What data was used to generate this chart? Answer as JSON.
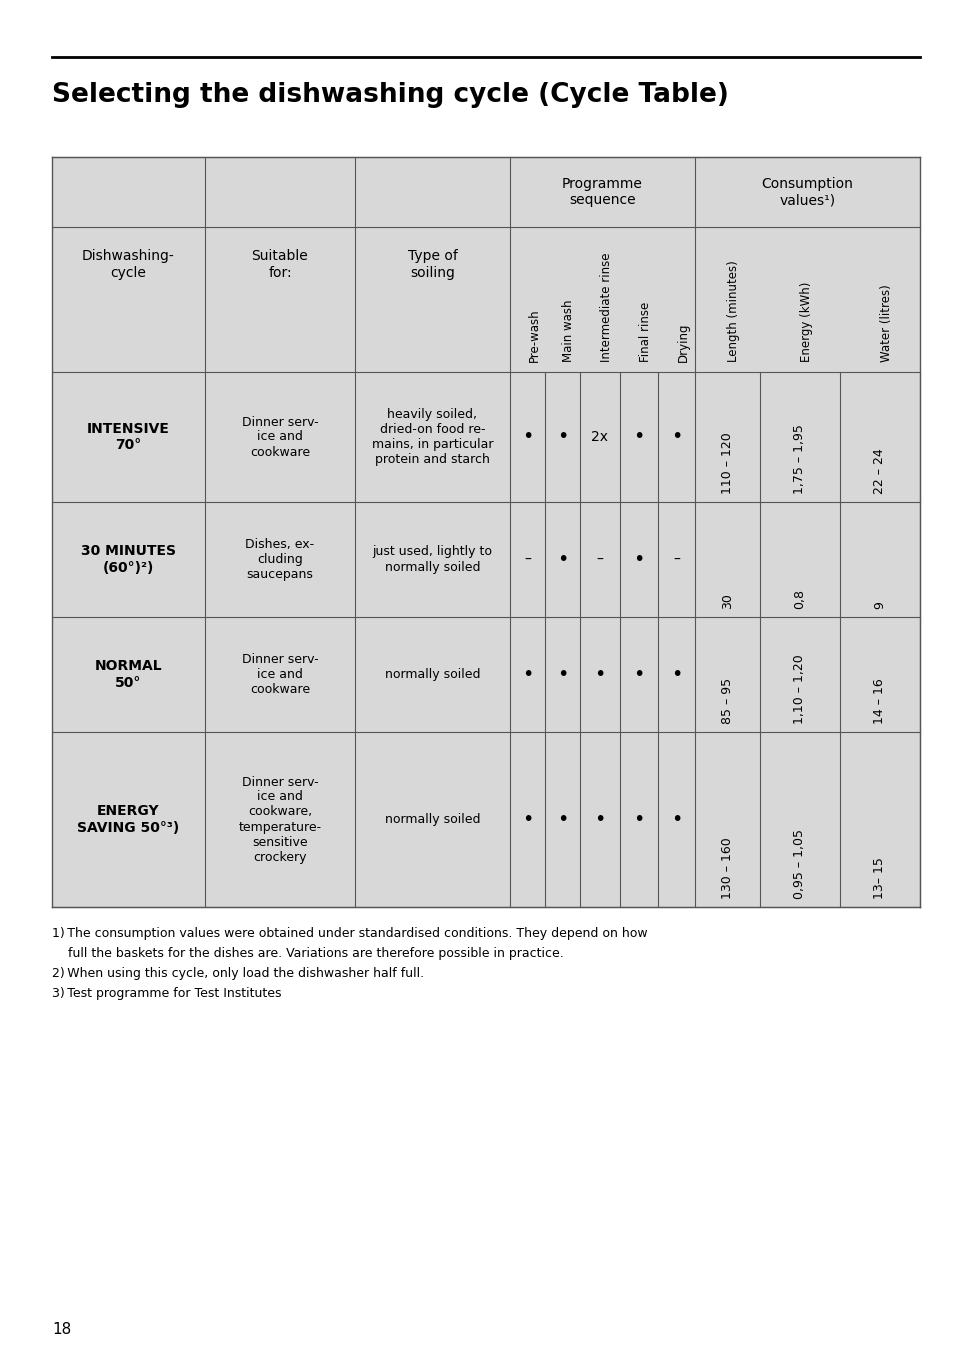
{
  "title": "Selecting the dishwashing cycle (Cycle Table)",
  "page_number": "18",
  "bg_color": "#ffffff",
  "header_bg": "#d8d8d8",
  "row_bg_light": "#e8e8e8",
  "row_bg_dark": "#d8d8d8",
  "col_header_labels": [
    "Dishwashing-\ncycle",
    "Suitable\nfor:",
    "Type of\nsoiling",
    "Pre-wash",
    "Main wash",
    "Intermediate rinse",
    "Final rinse",
    "Drying",
    "Length (minutes)",
    "Energy (kWh)",
    "Water (litres)"
  ],
  "group_header_1": "Programme\nsequence",
  "group_header_2": "Consumption\nvalues¹)",
  "rows": [
    {
      "cycle": "INTENSIVE\n70°",
      "suitable": "Dinner serv-\nice and\ncookware",
      "soiling": "heavily soiled,\ndried-on food re-\nmains, in particular\nprotein and starch",
      "pre_wash": "•",
      "main_wash": "•",
      "inter_rinse": "2x",
      "final_rinse": "•",
      "drying": "•",
      "length": "110 – 120",
      "energy": "1,75 – 1,95",
      "water": "22 – 24"
    },
    {
      "cycle": "30 MINUTES\n(60°)²)",
      "suitable": "Dishes, ex-\ncluding\nsaucepans",
      "soiling": "just used, lightly to\nnormally soiled",
      "pre_wash": "–",
      "main_wash": "•",
      "inter_rinse": "–",
      "final_rinse": "•",
      "drying": "–",
      "length": "30",
      "energy": "0,8",
      "water": "9"
    },
    {
      "cycle": "NORMAL\n50°",
      "suitable": "Dinner serv-\nice and\ncookware",
      "soiling": "normally soiled",
      "pre_wash": "•",
      "main_wash": "•",
      "inter_rinse": "•",
      "final_rinse": "•",
      "drying": "•",
      "length": "85 – 95",
      "energy": "1,10 – 1,20",
      "water": "14 – 16"
    },
    {
      "cycle": "ENERGY\nSAVING 50°³)",
      "suitable": "Dinner serv-\nice and\ncookware,\ntemperature-\nsensitive\ncrockery",
      "soiling": "normally soiled",
      "pre_wash": "•",
      "main_wash": "•",
      "inter_rinse": "•",
      "final_rinse": "•",
      "drying": "•",
      "length": "130 – 160",
      "energy": "0,95 – 1,05",
      "water": "13– 15"
    }
  ],
  "footnotes": [
    "1) The consumption values were obtained under standardised conditions. They depend on how",
    "    full the baskets for the dishes are. Variations are therefore possible in practice.",
    "2) When using this cycle, only load the dishwasher half full.",
    "3) Test programme for Test Institutes"
  ]
}
